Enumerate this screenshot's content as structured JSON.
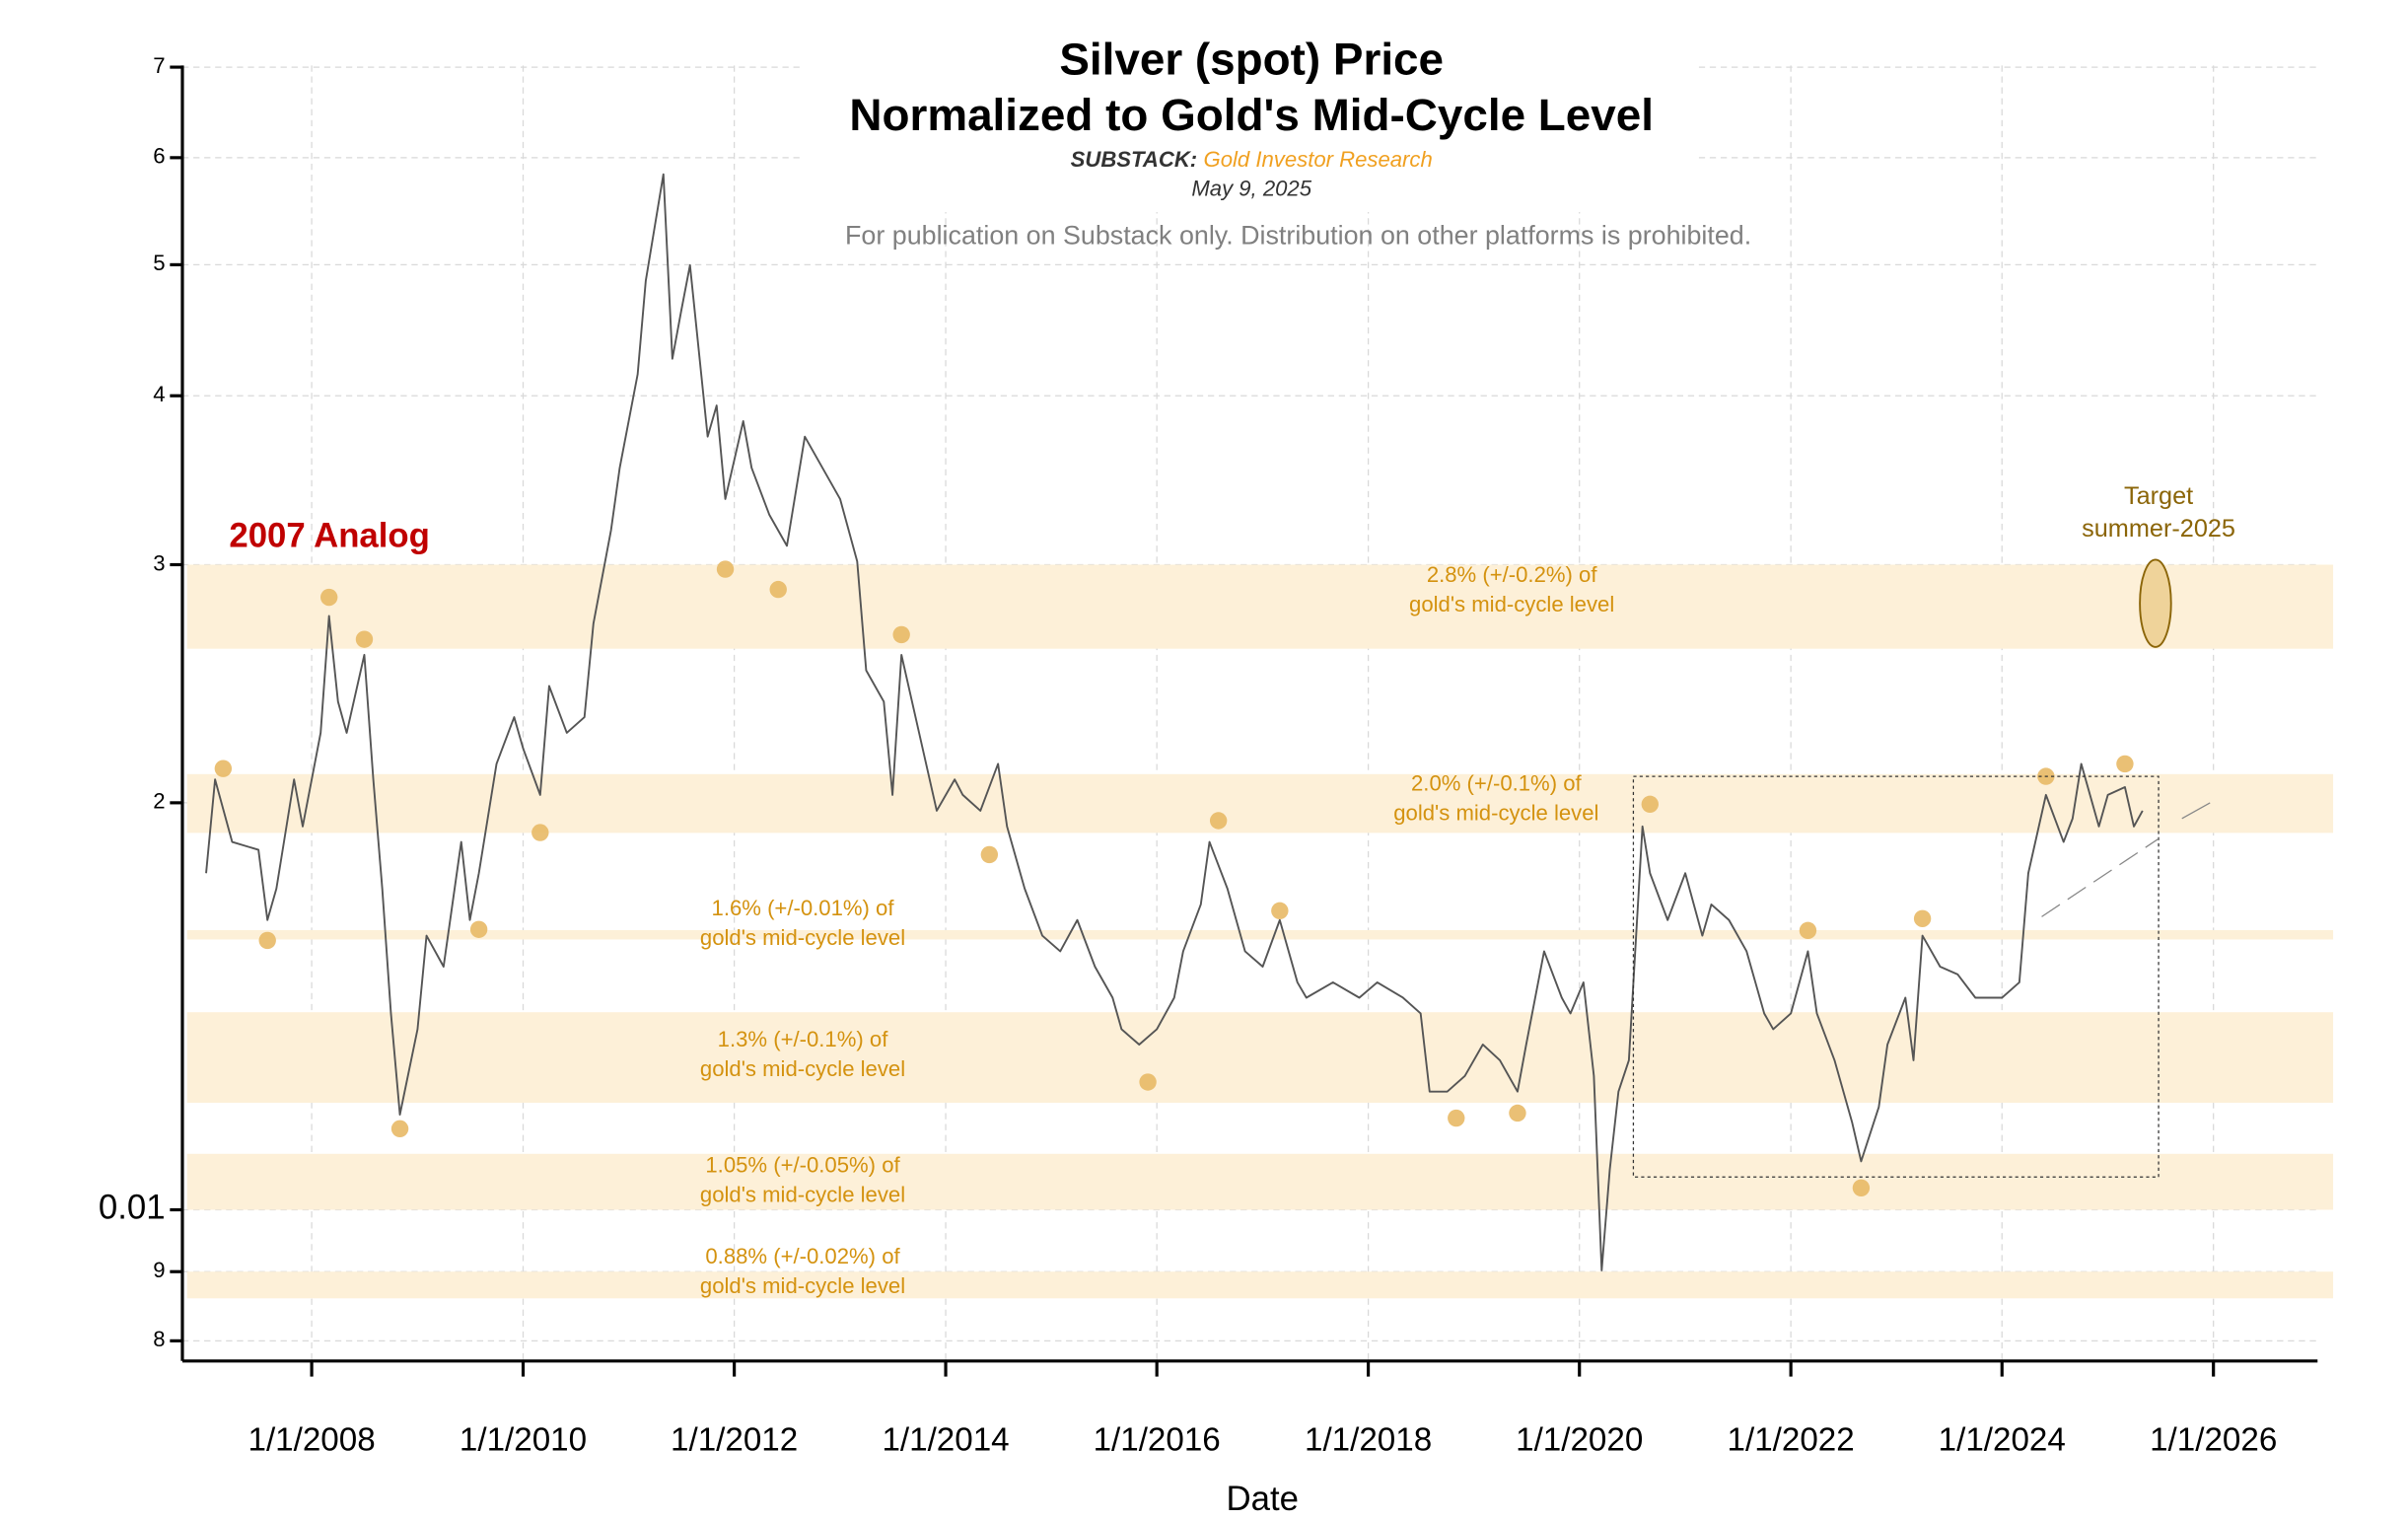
{
  "chart_data": {
    "type": "line",
    "title": [
      "Silver (spot) Price",
      "Normalized to Gold's Mid-Cycle Level"
    ],
    "source_label": "SUBSTACK:",
    "source": "Gold Investor Research",
    "date": "May 9, 2025",
    "notice": "For publication on Substack only. Distribution on other platforms is prohibited.",
    "xlabel": "Date",
    "annotation": "2007 Analog",
    "target_label": [
      "Target",
      "summer-2025"
    ],
    "xlim": [
      "2006-10-11",
      "2026-12-27"
    ],
    "xticks": [
      {
        "value": "2008-01-01",
        "label": "1/1/2008"
      },
      {
        "value": "2010-01-01",
        "label": "1/1/2010"
      },
      {
        "value": "2012-01-01",
        "label": "1/1/2012"
      },
      {
        "value": "2014-01-01",
        "label": "1/1/2014"
      },
      {
        "value": "2016-01-01",
        "label": "1/1/2016"
      },
      {
        "value": "2018-01-01",
        "label": "1/1/2018"
      },
      {
        "value": "2020-01-01",
        "label": "1/1/2020"
      },
      {
        "value": "2022-01-01",
        "label": "1/1/2022"
      },
      {
        "value": "2024-01-01",
        "label": "1/1/2024"
      },
      {
        "value": "2026-01-01",
        "label": "1/1/2026"
      }
    ],
    "ylim": [
      0.00773,
      0.0702
    ],
    "yscale": "log",
    "yticks": [
      {
        "value": 0.008,
        "label": "8"
      },
      {
        "value": 0.009,
        "label": "9"
      },
      0.01,
      {
        "value": 0.02,
        "label": "2"
      },
      {
        "value": 0.03,
        "label": "3"
      },
      {
        "value": 0.04,
        "label": "4"
      },
      {
        "value": 0.05,
        "label": "5"
      },
      {
        "value": 0.06,
        "label": "6"
      },
      {
        "value": 0.07,
        "label": "7"
      }
    ],
    "grid": true,
    "bands": [
      {
        "value": 0.028,
        "error": 0.002,
        "color": "#fdf0d8",
        "label": [
          "2.8% (+/-0.2%) of",
          "gold's mid-cycle level"
        ]
      },
      {
        "value": 0.02,
        "error": 0.001,
        "color": "#fdf0d8",
        "label": [
          "2.0% (+/-0.1%) of",
          "gold's mid-cycle level"
        ]
      },
      {
        "value": 0.016,
        "error": 0.0001,
        "color": "#fdf0d8",
        "label": [
          "1.6% (+/-0.01%) of",
          "gold's mid-cycle level"
        ]
      },
      {
        "value": 0.013,
        "error": 0.001,
        "color": "#fdf0d8",
        "label": [
          "1.3% (+/-0.1%) of",
          "gold's mid-cycle level"
        ]
      },
      {
        "value": 0.0105,
        "error": 0.0005,
        "color": "#fdf0d8",
        "label": [
          "1.05% (+/-0.05%) of",
          "gold's mid-cycle level"
        ]
      },
      {
        "value": 0.0088,
        "error": 0.0002,
        "color": "#fdf0d8",
        "label": [
          "0.88% (+/-0.02%) of",
          "gold's mid-cycle level"
        ]
      }
    ],
    "series": [
      {
        "type": "line",
        "color": "#555555",
        "x": [
          "2007-01-01",
          "2007-02-01",
          "2007-04-01",
          "2007-07-01",
          "2007-08-01",
          "2007-09-01",
          "2007-11-01",
          "2007-12-01",
          "2008-02-01",
          "2008-03-01",
          "2008-04-01",
          "2008-05-01",
          "2008-07-01",
          "2008-08-01",
          "2008-09-01",
          "2008-10-01",
          "2008-11-01",
          "2009-01-01",
          "2009-02-01",
          "2009-04-01",
          "2009-06-01",
          "2009-07-01",
          "2009-08-01",
          "2009-10-01",
          "2009-12-01",
          "2010-01-01",
          "2010-03-01",
          "2010-04-01",
          "2010-06-01",
          "2010-08-01",
          "2010-09-01",
          "2010-11-01",
          "2010-12-01",
          "2011-02-01",
          "2011-03-01",
          "2011-05-01",
          "2011-06-01",
          "2011-07-01",
          "2011-08-01",
          "2011-10-01",
          "2011-11-01",
          "2011-12-01",
          "2012-02-01",
          "2012-03-01",
          "2012-05-01",
          "2012-07-01",
          "2012-09-01",
          "2012-11-01",
          "2013-01-01",
          "2013-03-01",
          "2013-04-01",
          "2013-06-01",
          "2013-07-01",
          "2013-08-01",
          "2013-10-01",
          "2013-12-01",
          "2014-02-01",
          "2014-03-01",
          "2014-05-01",
          "2014-07-01",
          "2014-08-01",
          "2014-10-01",
          "2014-12-01",
          "2015-02-01",
          "2015-04-01",
          "2015-06-01",
          "2015-08-01",
          "2015-09-01",
          "2015-11-01",
          "2016-01-01",
          "2016-03-01",
          "2016-04-01",
          "2016-06-01",
          "2016-07-01",
          "2016-09-01",
          "2016-11-01",
          "2017-01-01",
          "2017-03-01",
          "2017-05-01",
          "2017-06-01",
          "2017-09-01",
          "2017-12-01",
          "2018-02-01",
          "2018-05-01",
          "2018-07-01",
          "2018-08-01",
          "2018-10-01",
          "2018-12-01",
          "2019-02-01",
          "2019-04-01",
          "2019-06-01",
          "2019-07-01",
          "2019-09-01",
          "2019-11-01",
          "2019-12-01",
          "2020-01-15",
          "2020-02-20",
          "2020-03-18",
          "2020-04-15",
          "2020-05-15",
          "2020-06-20",
          "2020-08-06",
          "2020-09-01",
          "2020-11-01",
          "2021-01-01",
          "2021-03-01",
          "2021-04-01",
          "2021-06-01",
          "2021-08-01",
          "2021-10-01",
          "2021-11-01",
          "2022-01-01",
          "2022-03-01",
          "2022-04-01",
          "2022-06-01",
          "2022-08-01",
          "2022-09-01",
          "2022-11-01",
          "2022-12-01",
          "2023-02-01",
          "2023-03-01",
          "2023-04-01",
          "2023-06-01",
          "2023-08-01",
          "2023-10-01",
          "2024-01-01",
          "2024-03-01",
          "2024-04-01",
          "2024-06-01",
          "2024-08-01",
          "2024-09-01",
          "2024-10-01",
          "2024-12-01",
          "2025-01-01",
          "2025-03-01",
          "2025-04-01",
          "2025-05-01"
        ],
        "values": [
          0.01774,
          0.02081,
          0.01871,
          0.01846,
          0.01638,
          0.01728,
          0.02081,
          0.01921,
          0.02253,
          0.02749,
          0.02376,
          0.02253,
          0.02573,
          0.02081,
          0.01728,
          0.01397,
          0.01176,
          0.0136,
          0.01595,
          0.01513,
          0.01871,
          0.01638,
          0.01774,
          0.02137,
          0.02314,
          0.02194,
          0.02027,
          0.0244,
          0.02253,
          0.02314,
          0.02713,
          0.03182,
          0.03538,
          0.04149,
          0.04865,
          0.05833,
          0.0426,
          0.04614,
          0.04996,
          0.03731,
          0.03934,
          0.03355,
          0.03831,
          0.03538,
          0.03267,
          0.03098,
          0.03731,
          0.03538,
          0.03355,
          0.03017,
          0.02506,
          0.02376,
          0.02027,
          0.02573,
          0.02253,
          0.01973,
          0.02081,
          0.02027,
          0.01973,
          0.02137,
          0.01921,
          0.01728,
          0.01595,
          0.01553,
          0.01638,
          0.01513,
          0.01435,
          0.0136,
          0.01325,
          0.0136,
          0.01435,
          0.01553,
          0.01682,
          0.01871,
          0.01728,
          0.01553,
          0.01513,
          0.01638,
          0.01473,
          0.01435,
          0.01473,
          0.01435,
          0.01473,
          0.01435,
          0.01397,
          0.01223,
          0.01223,
          0.01256,
          0.01325,
          0.0129,
          0.01223,
          0.01325,
          0.01553,
          0.01435,
          0.01397,
          0.01473,
          0.01256,
          0.00902,
          0.01071,
          0.01223,
          0.0129,
          0.01921,
          0.01774,
          0.01638,
          0.01774,
          0.01595,
          0.01682,
          0.01638,
          0.01553,
          0.01397,
          0.0136,
          0.01397,
          0.01553,
          0.01397,
          0.0129,
          0.0116,
          0.01086,
          0.01191,
          0.01325,
          0.01435,
          0.0129,
          0.01595,
          0.01513,
          0.01493,
          0.01435,
          0.01435,
          0.01473,
          0.01774,
          0.02027,
          0.01871,
          0.01947,
          0.02137,
          0.01921,
          0.02027,
          0.02054,
          0.01921,
          0.01973
        ]
      },
      {
        "type": "scatter",
        "color": "#e8b966",
        "x": [
          "2007-03-01",
          "2007-08-01",
          "2008-03-01",
          "2008-07-01",
          "2008-11-01",
          "2009-08-01",
          "2010-03-01",
          "2011-12-01",
          "2012-06-01",
          "2013-08-01",
          "2014-06-01",
          "2015-12-01",
          "2016-08-01",
          "2017-03-01",
          "2018-11-01",
          "2019-06-01",
          "2020-09-01",
          "2022-03-01",
          "2022-09-01",
          "2023-04-01",
          "2024-06-01",
          "2025-03-01"
        ],
        "values": [
          0.0212,
          0.01582,
          0.02838,
          0.02642,
          0.01148,
          0.01612,
          0.01901,
          0.02977,
          0.02876,
          0.02663,
          0.01831,
          0.01243,
          0.0194,
          0.01664,
          0.01169,
          0.01179,
          0.01995,
          0.01609,
          0.01038,
          0.01642,
          0.02092,
          0.02137
        ]
      }
    ]
  }
}
